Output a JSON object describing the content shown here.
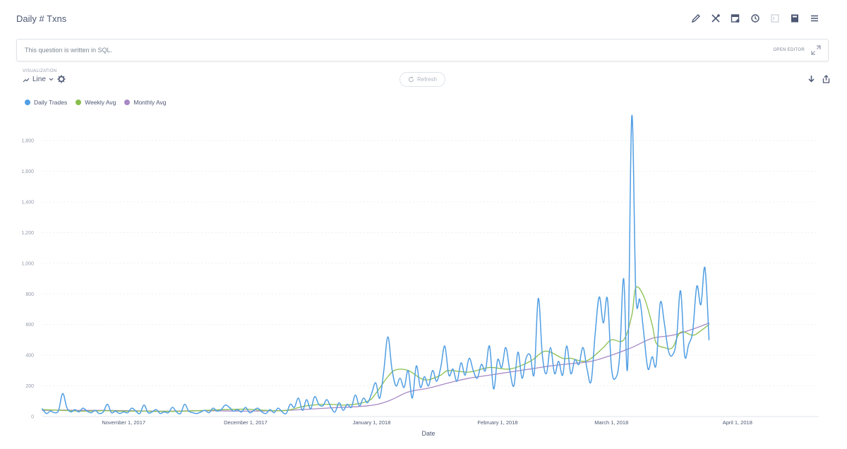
{
  "header": {
    "title": "Daily # Txns",
    "icons": [
      "pencil-icon",
      "tools-icon",
      "add-to-dashboard-icon",
      "history-icon",
      "sql-icon",
      "bookmark-icon",
      "menu-icon"
    ]
  },
  "sql_bar": {
    "text": "This question is written in SQL.",
    "open_editor": "OPEN EDITOR"
  },
  "visualization": {
    "label": "VISUALIZATION",
    "type": "Line"
  },
  "refresh": {
    "label": "Refresh"
  },
  "chart_data": {
    "type": "line",
    "xlabel": "Date",
    "ylabel": "",
    "ylim": [
      0,
      1980
    ],
    "yticks": [
      "0",
      "200",
      "400",
      "600",
      "800",
      "1,000",
      "1,200",
      "1,400",
      "1,600",
      "1,800"
    ],
    "xticks": [
      "November 1, 2017",
      "December 1, 2017",
      "January 1, 2018",
      "February 1, 2018",
      "March 1, 2018",
      "April 1, 2018"
    ],
    "xrange_days": [
      -20,
      171
    ],
    "grid": true,
    "legend_position": "top-left",
    "series": [
      {
        "name": "Daily Trades",
        "color": "#509ee3",
        "points": [
          [
            -20,
            50
          ],
          [
            -19,
            20
          ],
          [
            -18,
            35
          ],
          [
            -17,
            25
          ],
          [
            -16,
            40
          ],
          [
            -15,
            150
          ],
          [
            -14,
            60
          ],
          [
            -13,
            30
          ],
          [
            -12,
            45
          ],
          [
            -11,
            30
          ],
          [
            -10,
            55
          ],
          [
            -9,
            35
          ],
          [
            -8,
            25
          ],
          [
            -7,
            40
          ],
          [
            -6,
            20
          ],
          [
            -5,
            30
          ],
          [
            -4,
            80
          ],
          [
            -3,
            25
          ],
          [
            -2,
            35
          ],
          [
            -1,
            20
          ],
          [
            0,
            30
          ],
          [
            1,
            25
          ],
          [
            2,
            55
          ],
          [
            3,
            35
          ],
          [
            4,
            20
          ],
          [
            5,
            75
          ],
          [
            6,
            25
          ],
          [
            7,
            30
          ],
          [
            8,
            45
          ],
          [
            9,
            20
          ],
          [
            10,
            30
          ],
          [
            11,
            25
          ],
          [
            12,
            60
          ],
          [
            13,
            30
          ],
          [
            14,
            20
          ],
          [
            15,
            80
          ],
          [
            16,
            35
          ],
          [
            17,
            25
          ],
          [
            18,
            20
          ],
          [
            19,
            30
          ],
          [
            20,
            40
          ],
          [
            21,
            25
          ],
          [
            22,
            55
          ],
          [
            23,
            35
          ],
          [
            24,
            45
          ],
          [
            25,
            75
          ],
          [
            26,
            60
          ],
          [
            27,
            35
          ],
          [
            28,
            45
          ],
          [
            29,
            30
          ],
          [
            30,
            60
          ],
          [
            31,
            25
          ],
          [
            32,
            40
          ],
          [
            33,
            55
          ],
          [
            34,
            30
          ],
          [
            35,
            20
          ],
          [
            36,
            45
          ],
          [
            37,
            25
          ],
          [
            38,
            55
          ],
          [
            39,
            30
          ],
          [
            40,
            20
          ],
          [
            41,
            80
          ],
          [
            42,
            60
          ],
          [
            43,
            120
          ],
          [
            44,
            40
          ],
          [
            45,
            110
          ],
          [
            46,
            50
          ],
          [
            47,
            130
          ],
          [
            48,
            80
          ],
          [
            49,
            70
          ],
          [
            50,
            110
          ],
          [
            51,
            60
          ],
          [
            52,
            30
          ],
          [
            53,
            90
          ],
          [
            54,
            40
          ],
          [
            55,
            80
          ],
          [
            56,
            60
          ],
          [
            57,
            140
          ],
          [
            58,
            70
          ],
          [
            59,
            120
          ],
          [
            60,
            90
          ],
          [
            61,
            150
          ],
          [
            62,
            220
          ],
          [
            63,
            120
          ],
          [
            64,
            300
          ],
          [
            65,
            520
          ],
          [
            66,
            310
          ],
          [
            67,
            200
          ],
          [
            68,
            250
          ],
          [
            69,
            190
          ],
          [
            70,
            300
          ],
          [
            71,
            120
          ],
          [
            72,
            330
          ],
          [
            73,
            190
          ],
          [
            74,
            260
          ],
          [
            75,
            200
          ],
          [
            76,
            300
          ],
          [
            77,
            230
          ],
          [
            78,
            320
          ],
          [
            79,
            460
          ],
          [
            80,
            270
          ],
          [
            81,
            310
          ],
          [
            82,
            230
          ],
          [
            83,
            350
          ],
          [
            84,
            270
          ],
          [
            85,
            380
          ],
          [
            86,
            300
          ],
          [
            87,
            250
          ],
          [
            88,
            340
          ],
          [
            89,
            300
          ],
          [
            90,
            460
          ],
          [
            91,
            180
          ],
          [
            92,
            370
          ],
          [
            93,
            320
          ],
          [
            94,
            450
          ],
          [
            95,
            300
          ],
          [
            96,
            200
          ],
          [
            97,
            420
          ],
          [
            98,
            250
          ],
          [
            99,
            380
          ],
          [
            100,
            400
          ],
          [
            101,
            280
          ],
          [
            102,
            770
          ],
          [
            103,
            400
          ],
          [
            104,
            280
          ],
          [
            105,
            450
          ],
          [
            106,
            280
          ],
          [
            107,
            360
          ],
          [
            108,
            270
          ],
          [
            109,
            460
          ],
          [
            110,
            280
          ],
          [
            111,
            370
          ],
          [
            112,
            340
          ],
          [
            113,
            450
          ],
          [
            114,
            310
          ],
          [
            115,
            230
          ],
          [
            116,
            540
          ],
          [
            117,
            780
          ],
          [
            118,
            610
          ],
          [
            119,
            770
          ],
          [
            120,
            320
          ],
          [
            121,
            250
          ],
          [
            122,
            390
          ],
          [
            123,
            900
          ],
          [
            124,
            330
          ],
          [
            125,
            1960
          ],
          [
            126,
            800
          ],
          [
            127,
            760
          ],
          [
            128,
            530
          ],
          [
            129,
            310
          ],
          [
            130,
            390
          ],
          [
            131,
            340
          ],
          [
            132,
            740
          ],
          [
            133,
            610
          ],
          [
            134,
            430
          ],
          [
            135,
            400
          ],
          [
            136,
            500
          ],
          [
            137,
            820
          ],
          [
            138,
            400
          ],
          [
            139,
            470
          ],
          [
            140,
            560
          ],
          [
            141,
            850
          ],
          [
            142,
            730
          ],
          [
            143,
            970
          ],
          [
            144,
            500
          ]
        ]
      },
      {
        "name": "Weekly Avg",
        "color": "#88bf4d",
        "points": [
          [
            -20,
            45
          ],
          [
            -15,
            40
          ],
          [
            -10,
            35
          ],
          [
            -5,
            38
          ],
          [
            0,
            35
          ],
          [
            5,
            35
          ],
          [
            10,
            33
          ],
          [
            15,
            35
          ],
          [
            20,
            40
          ],
          [
            25,
            45
          ],
          [
            30,
            48
          ],
          [
            35,
            40
          ],
          [
            40,
            40
          ],
          [
            45,
            70
          ],
          [
            50,
            80
          ],
          [
            55,
            75
          ],
          [
            60,
            100
          ],
          [
            62,
            150
          ],
          [
            65,
            260
          ],
          [
            67,
            305
          ],
          [
            70,
            300
          ],
          [
            73,
            250
          ],
          [
            75,
            240
          ],
          [
            78,
            270
          ],
          [
            80,
            300
          ],
          [
            85,
            290
          ],
          [
            90,
            320
          ],
          [
            95,
            310
          ],
          [
            100,
            360
          ],
          [
            103,
            420
          ],
          [
            105,
            420
          ],
          [
            108,
            380
          ],
          [
            110,
            380
          ],
          [
            113,
            360
          ],
          [
            115,
            380
          ],
          [
            118,
            450
          ],
          [
            120,
            500
          ],
          [
            123,
            500
          ],
          [
            125,
            660
          ],
          [
            126,
            840
          ],
          [
            128,
            780
          ],
          [
            130,
            600
          ],
          [
            131,
            480
          ],
          [
            133,
            450
          ],
          [
            135,
            450
          ],
          [
            137,
            550
          ],
          [
            140,
            530
          ],
          [
            142,
            560
          ],
          [
            144,
            600
          ]
        ]
      },
      {
        "name": "Monthly Avg",
        "color": "#a989c5",
        "points": [
          [
            -20,
            40
          ],
          [
            -15,
            42
          ],
          [
            -10,
            40
          ],
          [
            -5,
            40
          ],
          [
            0,
            38
          ],
          [
            10,
            35
          ],
          [
            20,
            38
          ],
          [
            30,
            35
          ],
          [
            40,
            40
          ],
          [
            50,
            55
          ],
          [
            60,
            70
          ],
          [
            65,
            100
          ],
          [
            70,
            160
          ],
          [
            75,
            185
          ],
          [
            80,
            220
          ],
          [
            85,
            250
          ],
          [
            90,
            270
          ],
          [
            95,
            290
          ],
          [
            100,
            310
          ],
          [
            105,
            330
          ],
          [
            110,
            345
          ],
          [
            115,
            360
          ],
          [
            120,
            400
          ],
          [
            125,
            450
          ],
          [
            130,
            510
          ],
          [
            135,
            530
          ],
          [
            140,
            570
          ],
          [
            144,
            610
          ]
        ]
      }
    ]
  }
}
